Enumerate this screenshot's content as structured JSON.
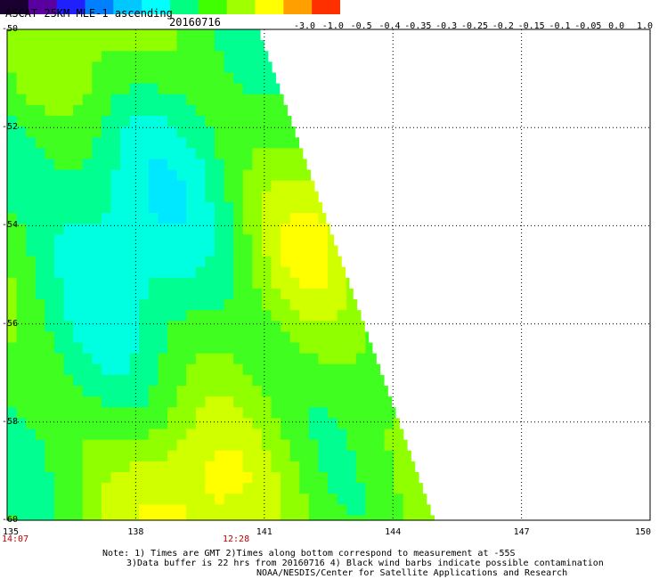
{
  "header": {
    "title": "ASCAT 25KM MLE-1 ascending",
    "date": "20160716"
  },
  "colorbar": {
    "ticks": [
      "-3.0",
      "-1.0",
      "-0.5",
      "-0.4",
      "-0.35",
      "-0.3",
      "-0.25",
      "-0.2",
      "-0.15",
      "-0.1",
      "-0.05",
      "0.0",
      "1.0"
    ],
    "colors": [
      "#1a0030",
      "#5a00a0",
      "#2020ff",
      "#0080ff",
      "#00c8ff",
      "#00ffff",
      "#00ff80",
      "#40ff00",
      "#a0ff00",
      "#ffff00",
      "#ffa000",
      "#ff3000"
    ]
  },
  "axes": {
    "lat_labels": [
      "-50",
      "-52",
      "-54",
      "-56",
      "-58",
      "-60"
    ],
    "lon_labels": [
      "135",
      "138",
      "141",
      "144",
      "147",
      "150"
    ],
    "time_left": "14:07",
    "time_mid": "12:28"
  },
  "notes": {
    "line1": "Note: 1) Times are GMT 2)Times along bottom correspond to measurement at -55S",
    "line2": "3)Data buffer is 22 hrs from 20160716 4) Black wind barbs indicate possible contamination",
    "line3": "NOAA/NESDIS/Center for Satellite Applications and Research"
  }
}
